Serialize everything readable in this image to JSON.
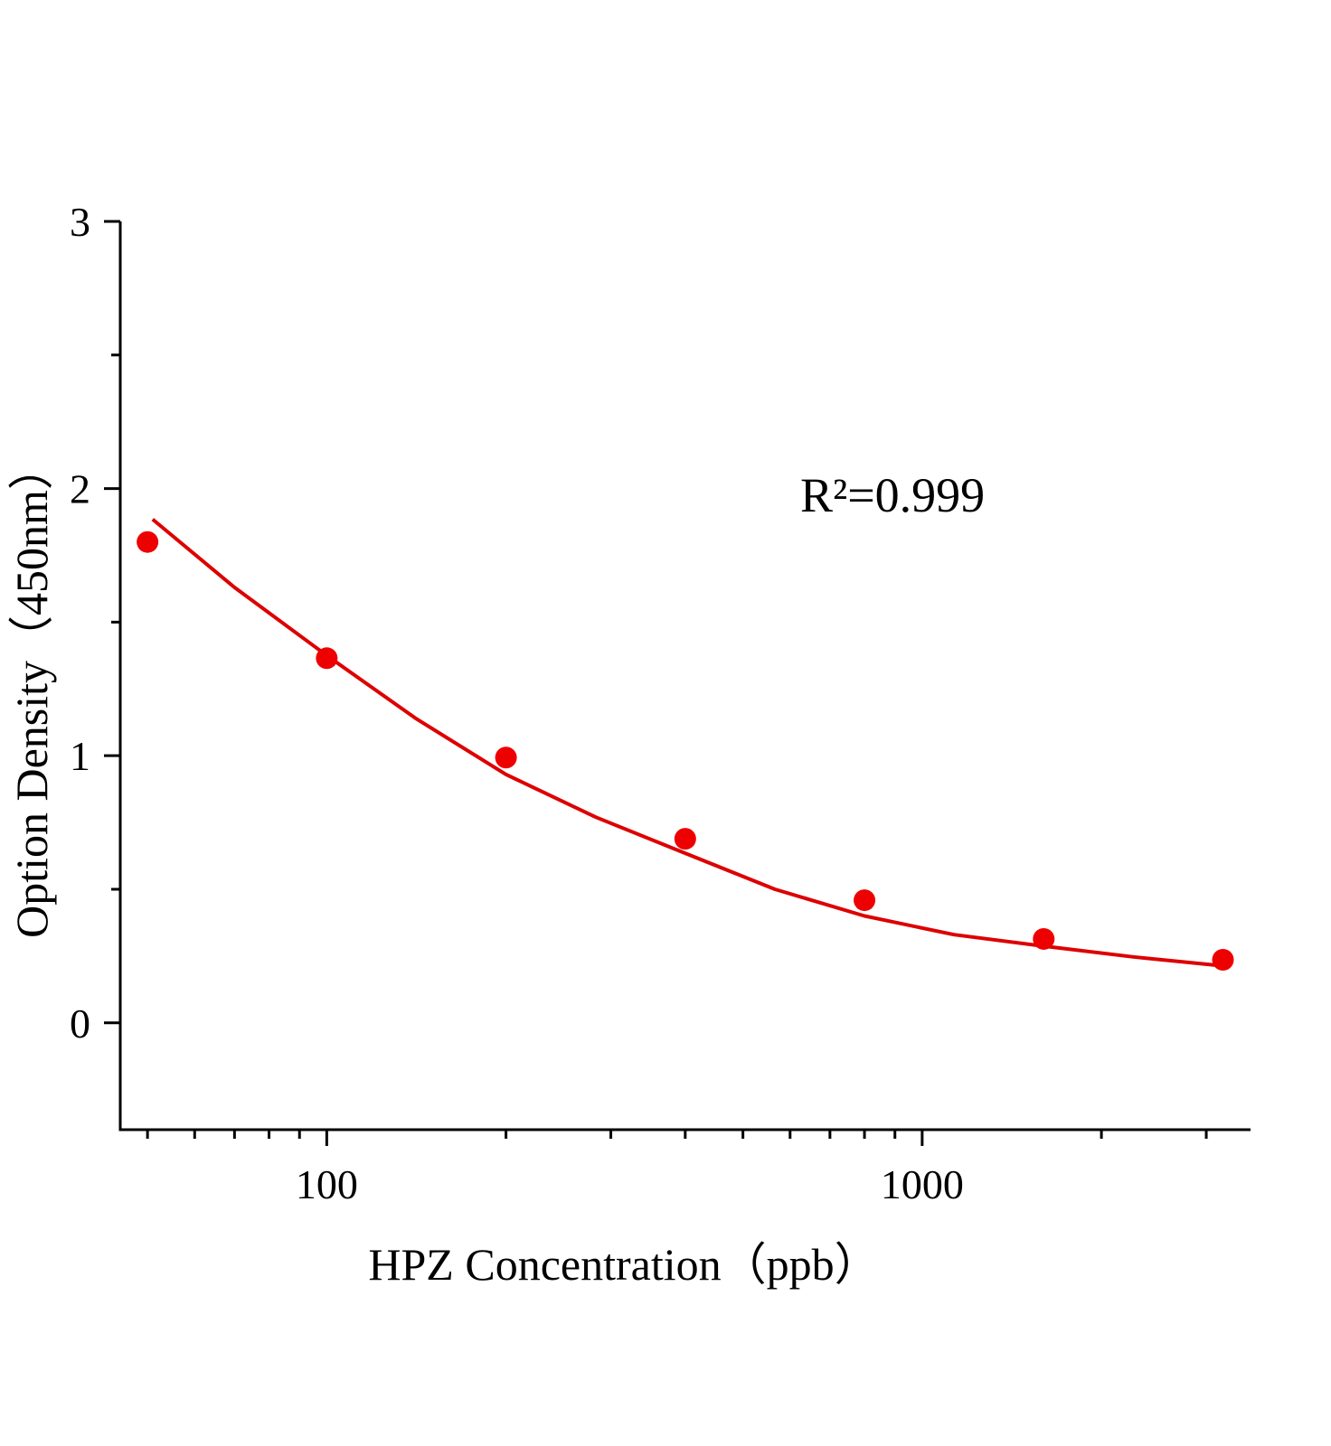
{
  "chart_data": {
    "type": "scatter",
    "log_x": true,
    "x_label": "HPZ Concentration（ppb）",
    "y_label": "Option Density（450nm）",
    "annotation": "R²=0.999",
    "series": [
      {
        "kind": "points",
        "color": "#ee0000",
        "x": [
          50,
          100,
          200,
          400,
          800,
          1600,
          3200
        ],
        "values": [
          1.8,
          1.365,
          0.993,
          0.689,
          0.459,
          0.314,
          0.236
        ]
      },
      {
        "kind": "line",
        "color": "#dd0000",
        "x": [
          51,
          70,
          100,
          141,
          200,
          283,
          400,
          566,
          800,
          1131,
          1600,
          2263,
          3200
        ],
        "values": [
          1.885,
          1.63,
          1.375,
          1.14,
          0.93,
          0.77,
          0.635,
          0.5,
          0.4,
          0.33,
          0.287,
          0.247,
          0.213
        ]
      }
    ],
    "xlim": [
      45,
      3560
    ],
    "ylim": [
      -0.4,
      3
    ],
    "xticks": [
      100,
      1000
    ],
    "xminorticks": [
      50,
      60,
      70,
      80,
      90,
      200,
      300,
      400,
      500,
      600,
      700,
      800,
      900,
      2000,
      3000
    ],
    "yticks": [
      0,
      1,
      2,
      3
    ],
    "yminorticks": [
      0.5,
      1.5,
      2.5
    ]
  }
}
